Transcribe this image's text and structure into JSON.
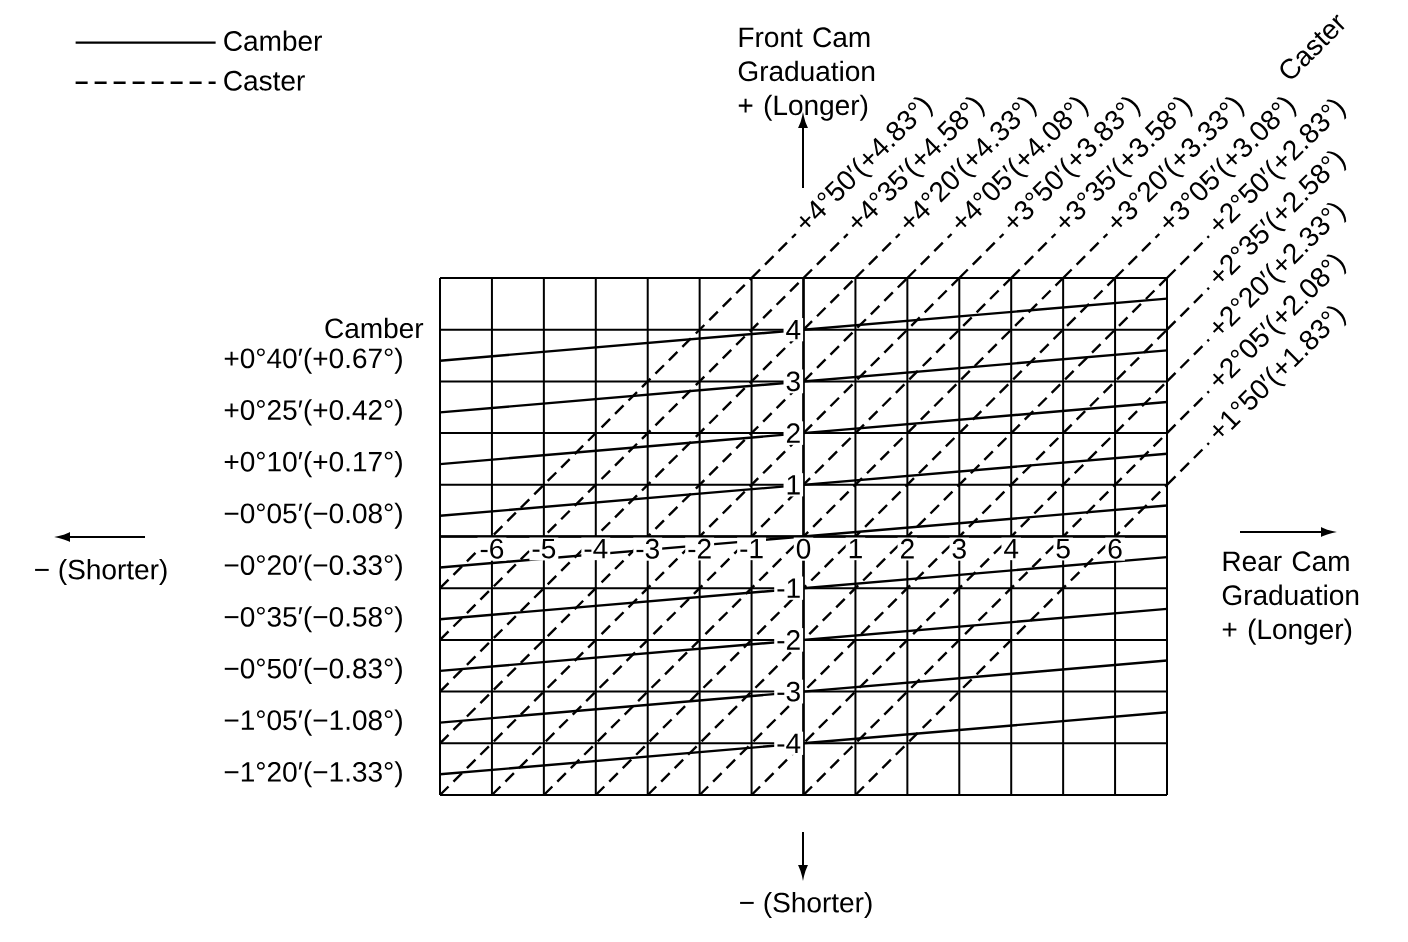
{
  "chart_data": {
    "type": "line",
    "xlabel": "Rear Cam Graduation + (Longer)",
    "xlim": [
      -7,
      7
    ],
    "ylim": [
      -5,
      5
    ],
    "xticks": [
      {
        "value": -7,
        "label": null
      },
      -6,
      -5,
      -4,
      -3,
      -2,
      -1,
      0,
      1,
      2,
      3,
      4,
      5,
      6,
      {
        "value": 7,
        "label": null
      }
    ],
    "yticks": [
      {
        "value": -5,
        "label": null
      },
      -4,
      -3,
      -2,
      -1,
      {
        "value": 0,
        "label": null
      },
      1,
      2,
      3,
      4,
      {
        "value": 5,
        "label": null
      }
    ],
    "grid": true,
    "legend": "top left",
    "series": [
      {
        "name": "Camber",
        "color": "#000000",
        "line_style": "solid",
        "x": [
          -7,
          7
        ],
        "values": [
          3.4,
          4.6
        ]
      },
      {
        "color": "#000000",
        "line_style": "solid",
        "x": [
          -7,
          7
        ],
        "values": [
          2.4,
          3.6
        ]
      },
      {
        "color": "#000000",
        "line_style": "solid",
        "x": [
          -7,
          7
        ],
        "values": [
          1.4,
          2.6
        ]
      },
      {
        "color": "#000000",
        "line_style": "solid",
        "x": [
          -7,
          7
        ],
        "values": [
          0.4,
          1.6
        ]
      },
      {
        "color": "#000000",
        "line_style": "solid",
        "x": [
          -7,
          7
        ],
        "values": [
          -0.6,
          0.6
        ]
      },
      {
        "color": "#000000",
        "line_style": "solid",
        "x": [
          -7,
          7
        ],
        "values": [
          -1.6,
          -0.4
        ]
      },
      {
        "color": "#000000",
        "line_style": "solid",
        "x": [
          -7,
          7
        ],
        "values": [
          -2.6,
          -1.4
        ]
      },
      {
        "color": "#000000",
        "line_style": "solid",
        "x": [
          -7,
          7
        ],
        "values": [
          -3.6,
          -2.4
        ]
      },
      {
        "color": "#000000",
        "line_style": "solid",
        "x": [
          -7,
          7
        ],
        "values": [
          -4.6,
          -3.4
        ]
      },
      {
        "name": "Caster",
        "color": "#000000",
        "line_style": "dashed",
        "x": [
          -7,
          -1
        ],
        "values": [
          -1,
          5
        ]
      },
      {
        "color": "#000000",
        "line_style": "dashed",
        "x": [
          -7,
          0
        ],
        "values": [
          -2,
          5
        ]
      },
      {
        "color": "#000000",
        "line_style": "dashed",
        "x": [
          -7,
          1
        ],
        "values": [
          -3,
          5
        ]
      },
      {
        "color": "#000000",
        "line_style": "dashed",
        "x": [
          -7,
          2
        ],
        "values": [
          -4,
          5
        ]
      },
      {
        "color": "#000000",
        "line_style": "dashed",
        "x": [
          -7,
          3
        ],
        "values": [
          -5,
          5
        ]
      },
      {
        "color": "#000000",
        "line_style": "dashed",
        "x": [
          -6,
          4
        ],
        "values": [
          -5,
          5
        ]
      },
      {
        "color": "#000000",
        "line_style": "dashed",
        "x": [
          -5,
          5
        ],
        "values": [
          -5,
          5
        ]
      },
      {
        "color": "#000000",
        "line_style": "dashed",
        "x": [
          -4,
          6
        ],
        "values": [
          -5,
          5
        ]
      },
      {
        "color": "#000000",
        "line_style": "dashed",
        "x": [
          -3,
          7
        ],
        "values": [
          -5,
          5
        ]
      },
      {
        "color": "#000000",
        "line_style": "dashed",
        "x": [
          -2,
          7
        ],
        "values": [
          -5,
          4
        ]
      },
      {
        "color": "#000000",
        "line_style": "dashed",
        "x": [
          -1,
          7
        ],
        "values": [
          -5,
          3
        ]
      },
      {
        "color": "#000000",
        "line_style": "dashed",
        "x": [
          0,
          7
        ],
        "values": [
          -5,
          2
        ]
      },
      {
        "color": "#000000",
        "line_style": "dashed",
        "x": [
          1,
          7
        ],
        "values": [
          -5,
          1
        ]
      }
    ],
    "annotations": [
      "Camber",
      {
        "text": "+0°40′(+0.67°)",
        "x": -7,
        "y": 3.4
      },
      {
        "text": "+0°25′(+0.42°)",
        "x": -7,
        "y": 2.4
      },
      {
        "text": "+0°10′(+0.17°)",
        "x": -7,
        "y": 1.4
      },
      {
        "text": "−0°05′(−0.08°)",
        "x": -7,
        "y": 0.4
      },
      {
        "text": "−0°20′(−0.33°)",
        "x": -7,
        "y": -0.6
      },
      {
        "text": "−0°35′(−0.58°)",
        "x": -7,
        "y": -1.6
      },
      {
        "text": "−0°50′(−0.83°)",
        "x": -7,
        "y": -2.6
      },
      {
        "text": "−1°05′(−1.08°)",
        "x": -7,
        "y": -3.6
      },
      {
        "text": "−1°20′(−1.33°)",
        "x": -7,
        "y": -4.6
      },
      "Caster",
      {
        "text": "+4°50′(+4.83°)",
        "x": -1,
        "y": 5
      },
      {
        "text": "+4°35′(+4.58°)",
        "x": 0,
        "y": 5
      },
      {
        "text": "+4°20′(+4.33°)",
        "x": 1,
        "y": 5
      },
      {
        "text": "+4°05′(+4.08°)",
        "x": 2,
        "y": 5
      },
      {
        "text": "+3°50′(+3.83°)",
        "x": 3,
        "y": 5
      },
      {
        "text": "+3°35′(+3.58°)",
        "x": 4,
        "y": 5
      },
      {
        "text": "+3°20′(+3.33°)",
        "x": 5,
        "y": 5
      },
      {
        "text": "+3°05′(+3.08°)",
        "x": 6,
        "y": 5
      },
      {
        "text": "+2°50′(+2.83°)",
        "x": 7,
        "y": 5
      },
      {
        "text": "+2°35′(+2.58°)",
        "x": 7,
        "y": 4
      },
      {
        "text": "+2°20′(+2.33°)",
        "x": 7,
        "y": 3
      },
      {
        "text": "+2°05′(+2.08°)",
        "x": 7,
        "y": 2
      },
      {
        "text": "+1°50′(+1.83°)",
        "x": 7,
        "y": 1
      },
      "Front Cam Graduation + (Longer)",
      "− (Shorter)",
      "− (Shorter)"
    ]
  }
}
